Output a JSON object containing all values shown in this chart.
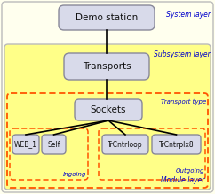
{
  "bg_outer": "#ffffee",
  "bg_subsystem": "#ffff88",
  "bg_transport_dashed": "#ffff88",
  "box_fill": "#d8daea",
  "box_edge": "#888899",
  "dashed_edge": "#ff5500",
  "text_layer_color": "#0000cc",
  "text_black": "#111111",
  "system_layer_label": "System layer",
  "subsystem_layer_label": "Subsystem layer",
  "transport_type_label": "Transport type",
  "module_layer_label": "Module layer",
  "ingoing_label": "Ingoing",
  "outgoing_label": "Outgoing",
  "demo_station_label": "Demo station",
  "transports_label": "Transports",
  "sockets_label": "Sockets",
  "module_labels": [
    "WEB_1",
    "Self",
    "TrCntrloop",
    "TrCntrplx8"
  ],
  "figw": 2.42,
  "figh": 2.19,
  "dpi": 100
}
